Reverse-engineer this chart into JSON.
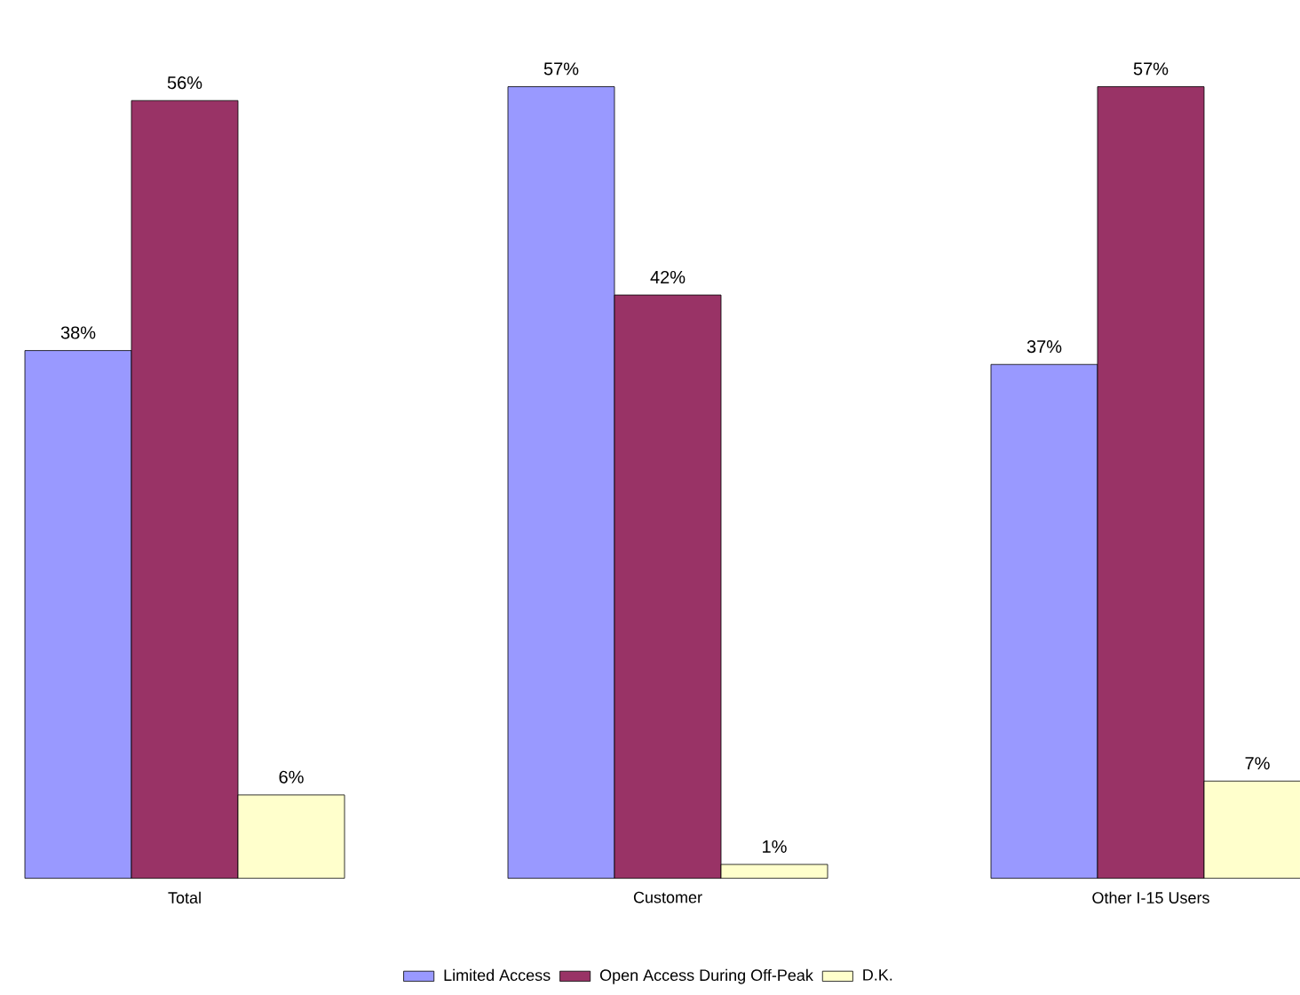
{
  "chart_data": {
    "type": "bar",
    "categories": [
      "Total",
      "Customer",
      "Other I-15 Users"
    ],
    "series": [
      {
        "name": "Limited Access",
        "color": "#9999ff",
        "values": [
          38,
          57,
          37
        ],
        "value_labels": [
          "38%",
          "57%",
          "37%"
        ]
      },
      {
        "name": "Open Access During Off-Peak",
        "color": "#993366",
        "values": [
          56,
          42,
          57
        ],
        "value_labels": [
          "56%",
          "42%",
          "57%"
        ]
      },
      {
        "name": "D.K.",
        "color": "#ffffcc",
        "values": [
          6,
          1,
          7
        ],
        "value_labels": [
          "6%",
          "1%",
          "7%"
        ]
      }
    ],
    "legend": "bottom"
  }
}
